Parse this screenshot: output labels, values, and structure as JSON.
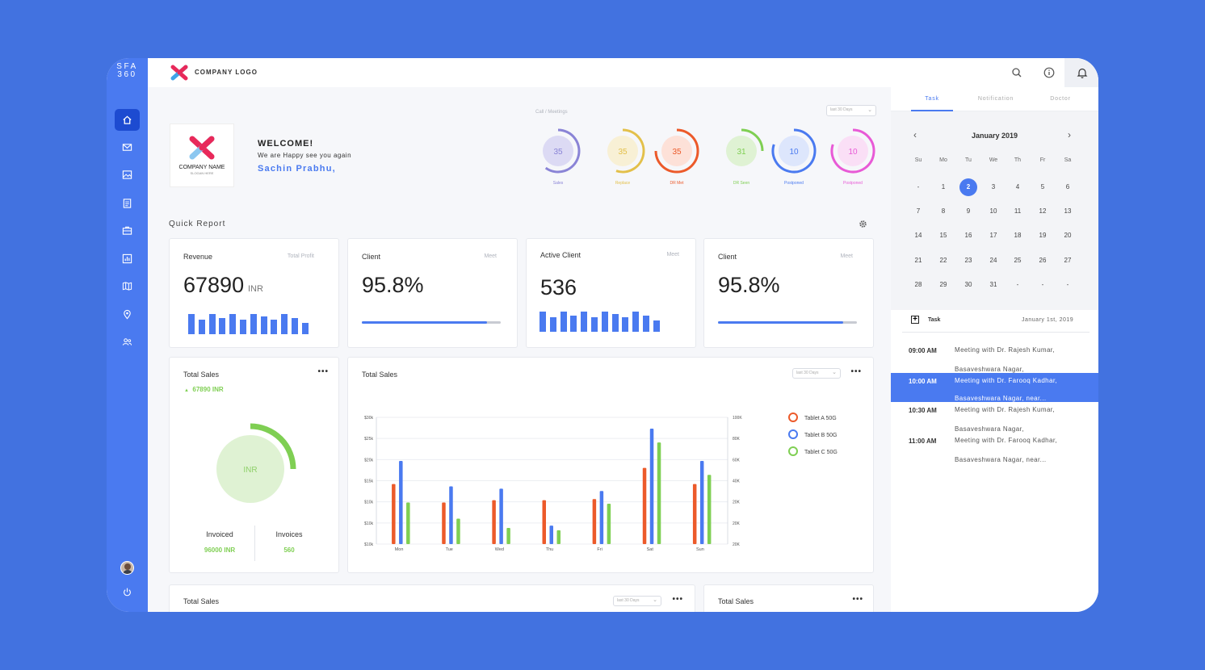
{
  "brand": {
    "line1": "SFA",
    "line2": "360"
  },
  "topbar": {
    "logo_text": "COMPANY LOGO"
  },
  "welcome": {
    "company_name": "COMPANY NAME",
    "slogan": "SLOGAN HERE",
    "title": "WELCOME!",
    "subtitle": "We are Happy see you again",
    "user": "Sachin Prabhu,"
  },
  "meetings": {
    "title": "Call / Meetings",
    "range": "last 30 Days",
    "gauges": [
      {
        "value": "35",
        "label": "Sales",
        "fraction": 0.6,
        "color": "#8a84d6",
        "fill": "#dcdaf4"
      },
      {
        "value": "35",
        "label": "Replace",
        "fraction": 0.55,
        "color": "#e3c04a",
        "fill": "#f8f0d5"
      },
      {
        "value": "35",
        "label": "DR Met",
        "fraction": 0.75,
        "color": "#ec5a2a",
        "fill": "#fde1d8"
      },
      {
        "value": "31",
        "label": "DR Seen",
        "fraction": 0.25,
        "color": "#7fcf53",
        "fill": "#dff2d3"
      },
      {
        "value": "10",
        "label": "Postponed",
        "fraction": 0.8,
        "color": "#4a7af0",
        "fill": "#dde6fc"
      },
      {
        "value": "10",
        "label": "Postponed",
        "fraction": 0.8,
        "color": "#e85ad6",
        "fill": "#fadff6"
      }
    ]
  },
  "quick_report": {
    "title": "Quick Report",
    "cards": [
      {
        "title": "Revenue",
        "meta": "Total Profit",
        "value": "67890",
        "unit": "INR"
      },
      {
        "title": "Client",
        "meta": "Meet",
        "value": "95.8%",
        "progress": 0.9
      },
      {
        "title": "Active Client",
        "meta": "Meet",
        "value": "536"
      },
      {
        "title": "Client",
        "meta": "Meet",
        "value": "95.8%",
        "progress": 0.9
      }
    ]
  },
  "sales_card": {
    "title": "Total Sales",
    "amount": "67890 INR",
    "donut_label": "INR",
    "invoiced_label": "Invoiced",
    "invoiced_value": "96000 INR",
    "invoices_label": "Invoices",
    "invoices_value": "560"
  },
  "chart_card": {
    "title": "Total Sales",
    "range": "last 30 Days"
  },
  "chart_data": {
    "type": "bar",
    "categories": [
      "Mon",
      "Tue",
      "Wed",
      "Thu",
      "Fri",
      "Sat",
      "Sun"
    ],
    "series": [
      {
        "name": "Tablet A 50G",
        "color": "#ec5a2a",
        "values": [
          52,
          36,
          38,
          38,
          39,
          66,
          52
        ]
      },
      {
        "name": "Tablet B 50G",
        "color": "#4a7af0",
        "values": [
          72,
          50,
          48,
          16,
          46,
          100,
          72
        ]
      },
      {
        "name": "Tablet C 50G",
        "color": "#7fcf53",
        "values": [
          36,
          22,
          14,
          12,
          35,
          88,
          60
        ]
      }
    ],
    "y_left_ticks": [
      "$30k",
      "$25k",
      "$20k",
      "$15k",
      "$10k",
      "$10k",
      "$10k"
    ],
    "y_right_ticks": [
      "100K",
      "80K",
      "60K",
      "40K",
      "20K",
      "20K",
      "20K"
    ],
    "ylim": [
      0,
      120
    ],
    "legend": "right"
  },
  "bottom": {
    "left_title": "Total Sales",
    "left_range": "last 30 Days",
    "right_title": "Total Sales"
  },
  "right_panel": {
    "tabs": [
      "Task",
      "Notification",
      "Doctor"
    ],
    "calendar": {
      "month": "January 2019",
      "weekdays": [
        "Su",
        "Mo",
        "Tu",
        "We",
        "Th",
        "Fr",
        "Sa"
      ],
      "days": [
        "-",
        "1",
        "2",
        "3",
        "4",
        "5",
        "6",
        "7",
        "8",
        "9",
        "10",
        "11",
        "12",
        "13",
        "14",
        "15",
        "16",
        "17",
        "18",
        "19",
        "20",
        "21",
        "22",
        "23",
        "24",
        "25",
        "26",
        "27",
        "28",
        "29",
        "30",
        "31",
        "-",
        "-",
        "-"
      ],
      "selected": "2"
    },
    "task_header": "Task",
    "task_date": "January 1st, 2019",
    "tasks": [
      {
        "time": "09:00 AM",
        "line1": "Meeting with Dr. Rajesh Kumar,",
        "line2": "Basaveshwara Nagar,"
      },
      {
        "time": "10:00 AM",
        "line1": "Meeting with Dr. Farooq Kadhar,",
        "line2": "Basaveshwara Nagar, near..."
      },
      {
        "time": "10:30 AM",
        "line1": "Meeting with Dr. Rajesh Kumar,",
        "line2": "Basaveshwara Nagar,"
      },
      {
        "time": "11:00 AM",
        "line1": "Meeting with Dr. Farooq Kadhar,",
        "line2": "Basaveshwara Nagar, near..."
      }
    ]
  }
}
